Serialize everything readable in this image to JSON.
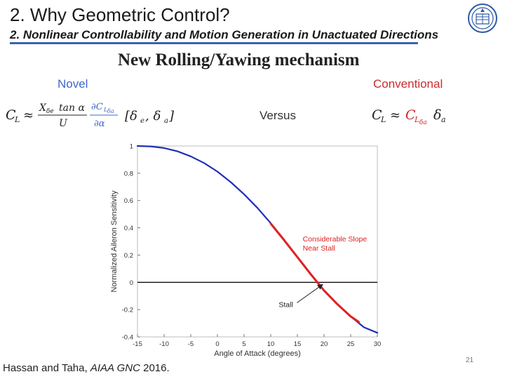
{
  "slide": {
    "title": "2. Why Geometric Control?",
    "subtitle": "2. Nonlinear Controllability and Motion Generation in Unactuated Directions",
    "heading": "New Rolling/Yawing mechanism",
    "novel_label": "Novel",
    "conventional_label": "Conventional",
    "versus_label": "Versus",
    "footer": {
      "authors": "Hassan and Taha, ",
      "venue": "AIAA GNC",
      "year": " 2016."
    },
    "page_number": "21"
  },
  "colors": {
    "accent_blue": "#3f67c7",
    "accent_red": "#cc2b2b",
    "curve_blue": "#1f2fb8",
    "curve_red": "#e02020"
  },
  "chart_data": {
    "type": "line",
    "title": "",
    "xlabel": "Angle of Attack (degrees)",
    "ylabel": "Normalized Aileron Sensitivity",
    "xlim": [
      -15,
      30
    ],
    "ylim": [
      -0.4,
      1
    ],
    "xticks": [
      -15,
      -10,
      -5,
      0,
      5,
      10,
      15,
      20,
      25,
      30
    ],
    "yticks": [
      -0.4,
      -0.2,
      0,
      0.2,
      0.4,
      0.6,
      0.8,
      1
    ],
    "series": [
      {
        "name": "Aileron sensitivity",
        "color": "#1f2fb8",
        "x": [
          -15,
          -12.5,
          -10,
          -7.5,
          -5,
          -2.5,
          0,
          2.5,
          5,
          7.5,
          10,
          12.5,
          15,
          17.5,
          20,
          22.5,
          25,
          27.5,
          30
        ],
        "y": [
          1.0,
          0.997,
          0.985,
          0.961,
          0.924,
          0.875,
          0.812,
          0.735,
          0.646,
          0.546,
          0.434,
          0.313,
          0.185,
          0.057,
          -0.06,
          -0.16,
          -0.25,
          -0.33,
          -0.37
        ]
      },
      {
        "name": "Considerable slope near stall",
        "color": "#e02020",
        "x": [
          10,
          12.5,
          15,
          17.5,
          20,
          22.5,
          25,
          26.5
        ],
        "y": [
          0.43,
          0.31,
          0.185,
          0.06,
          -0.06,
          -0.16,
          -0.25,
          -0.29
        ]
      }
    ],
    "zero_line": 0,
    "annotations": [
      {
        "text_line1": "Considerable Slope",
        "text_line2": "Near Stall",
        "x": 16,
        "y": 0.3,
        "color": "#e02020"
      },
      {
        "text": "Stall",
        "x": 11.5,
        "y": -0.16,
        "arrow_to_x": 20,
        "arrow_to_y": 0
      }
    ]
  }
}
